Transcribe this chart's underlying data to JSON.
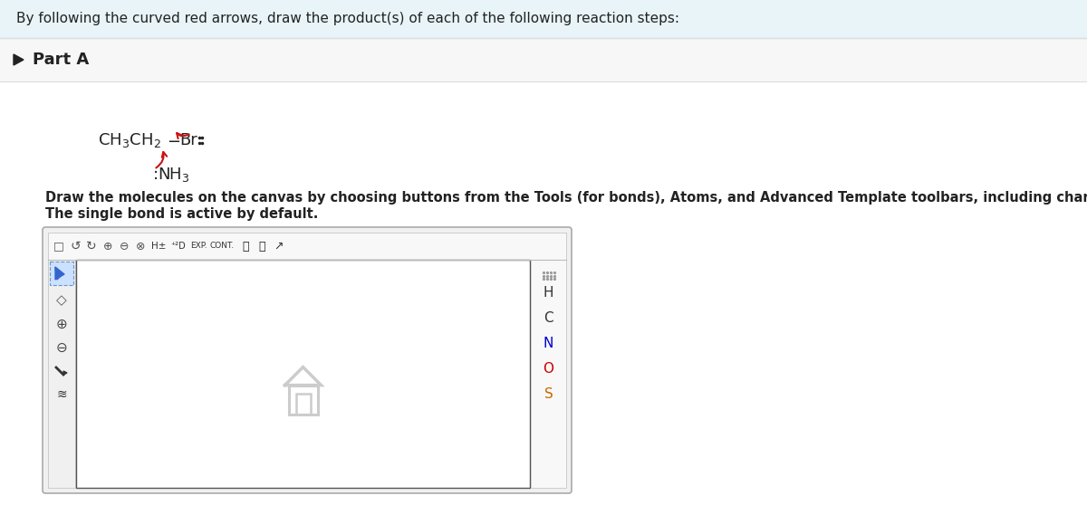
{
  "header_text": "By following the curved red arrows, draw the product(s) of each of the following reaction steps:",
  "header_bg": "#e8f4f8",
  "header_border": "#c8dde4",
  "part_a_text": "Part A",
  "molecule_color": "#222222",
  "arrow_color": "#cc1111",
  "instruction_line1": "Draw the molecules on the canvas by choosing buttons from the Tools (for bonds), Atoms, and Advanced Template toolbars, including charges where needed.",
  "instruction_line2": "The single bond is active by default.",
  "right_N_color": "#0000cc",
  "right_O_color": "#cc0000",
  "right_S_color": "#cc6600",
  "right_H_color": "#333333",
  "right_C_color": "#333333",
  "home_icon_color": "#cccccc",
  "page_bg": "#ffffff",
  "section_bg": "#f7f7f7",
  "section_border": "#dddddd"
}
